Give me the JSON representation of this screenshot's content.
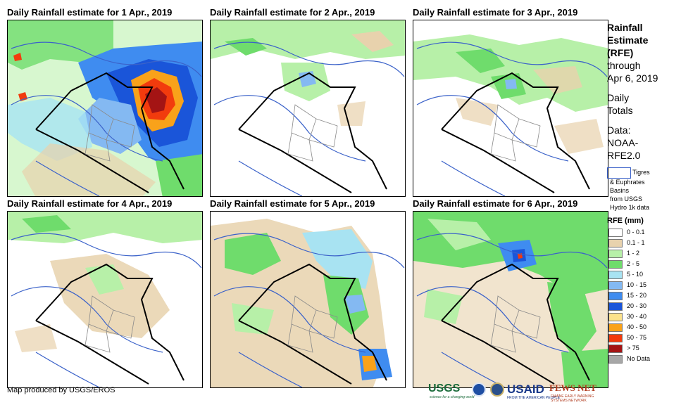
{
  "panels": [
    {
      "title": "Daily Rainfall estimate for 1 Apr., 2019"
    },
    {
      "title": "Daily Rainfall estimate for 2 Apr., 2019"
    },
    {
      "title": "Daily Rainfall estimate for 3 Apr., 2019"
    },
    {
      "title": "Daily Rainfall estimate for 4 Apr., 2019"
    },
    {
      "title": "Daily Rainfall estimate for 5 Apr., 2019"
    },
    {
      "title": "Daily Rainfall estimate for 6 Apr., 2019"
    }
  ],
  "legend": {
    "title_lines": [
      "Rainfall",
      "Estimate",
      "(RFE)"
    ],
    "through_lines": [
      "through",
      "Apr 6, 2019"
    ],
    "daily_lines": [
      "Daily",
      "Totals"
    ],
    "data_lines": [
      "Data:",
      "NOAA-",
      "RFE2.0"
    ],
    "basin_line1": "Tigres",
    "basin_lines": [
      "& Euphrates",
      "Basins",
      "from USGS",
      "Hydro 1k data"
    ],
    "rfe_unit": "RFE (mm)",
    "classes": [
      {
        "label": "0 - 0.1",
        "color": "#ffffff"
      },
      {
        "label": "0.1 - 1",
        "color": "#e8d2ad"
      },
      {
        "label": "1 - 2",
        "color": "#b7f0a8"
      },
      {
        "label": "2 - 5",
        "color": "#6fdc6c"
      },
      {
        "label": "5 - 10",
        "color": "#a8e3f2"
      },
      {
        "label": "10 - 15",
        "color": "#84b9f2"
      },
      {
        "label": "15 - 20",
        "color": "#3f8cf0"
      },
      {
        "label": "20 - 30",
        "color": "#1a55d9"
      },
      {
        "label": "30 - 40",
        "color": "#fce28b"
      },
      {
        "label": "40 - 50",
        "color": "#f9a21a"
      },
      {
        "label": "50 - 75",
        "color": "#f23b0d"
      },
      {
        "label": "> 75",
        "color": "#a41414"
      },
      {
        "label": "No Data",
        "color": "#a7a7a7"
      }
    ]
  },
  "footer": "Map produced by USGS/EROS",
  "logos": {
    "usgs": "USGS",
    "usgs_tagline": "science for a changing world",
    "usaid": "USAID",
    "usaid_tagline": "FROM THE AMERICAN PEOPLE",
    "fews": "FEWS NET",
    "fews_tagline": "FAMINE EARLY WARNING SYSTEMS NETWORK"
  }
}
